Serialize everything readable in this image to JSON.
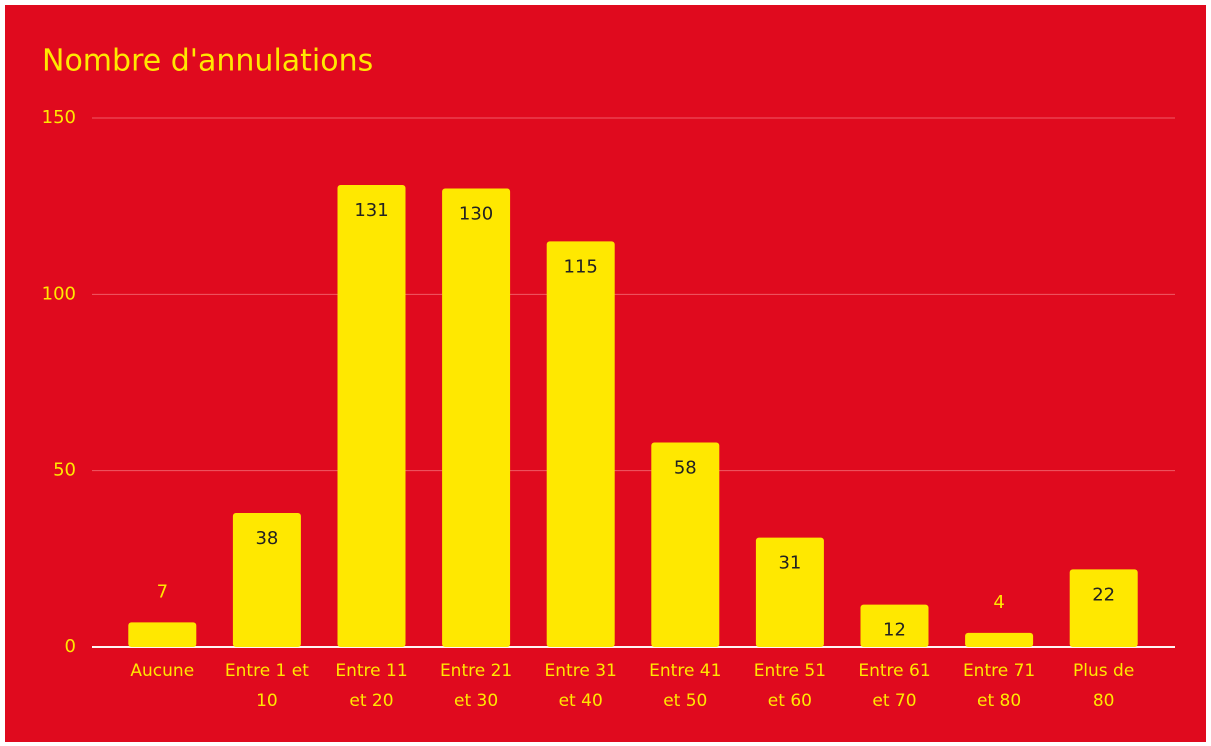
{
  "chart_data": {
    "type": "bar",
    "title": "Nombre d'annulations",
    "categories": [
      "Aucune",
      "Entre 1 et 10",
      "Entre 11 et 20",
      "Entre 21 et 30",
      "Entre 31 et 40",
      "Entre 41 et 50",
      "Entre 51 et 60",
      "Entre 61 et 70",
      "Entre 71 et 80",
      "Plus de 80"
    ],
    "values": [
      7,
      38,
      131,
      130,
      115,
      58,
      31,
      12,
      4,
      22
    ],
    "color": "#ffe800",
    "background": "#e00a1e",
    "ylim": [
      0,
      150
    ],
    "yticks": [
      0,
      50,
      100,
      150
    ],
    "grid": true
  }
}
